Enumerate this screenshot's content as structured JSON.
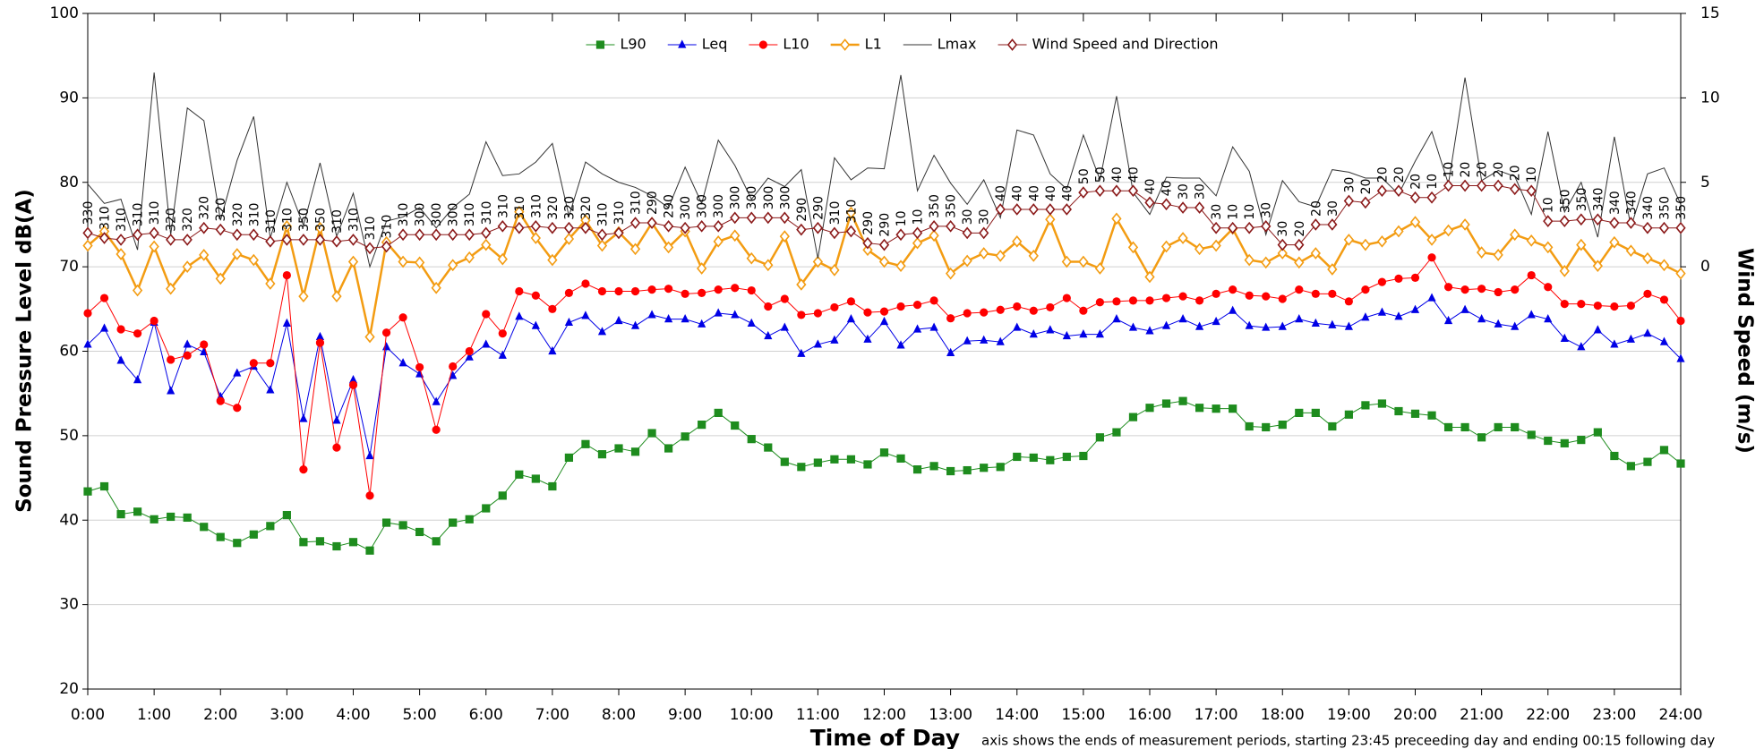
{
  "chart_data": {
    "type": "line",
    "y_label": "Sound Pressure Level dB(A)",
    "y2_label": "Wind Speed (m/s)",
    "x_label": "Time of Day",
    "note": "axis shows the ends of measurement periods, starting 23:45 preceeding day and ending 00:15 following day",
    "x": [
      0,
      0.25,
      0.5,
      0.75,
      1,
      1.25,
      1.5,
      1.75,
      2,
      2.25,
      2.5,
      2.75,
      3,
      3.25,
      3.5,
      3.75,
      4,
      4.25,
      4.5,
      4.75,
      5,
      5.25,
      5.5,
      5.75,
      6,
      6.25,
      6.5,
      6.75,
      7,
      7.25,
      7.5,
      7.75,
      8,
      8.25,
      8.5,
      8.75,
      9,
      9.25,
      9.5,
      9.75,
      10,
      10.25,
      10.5,
      10.75,
      11,
      11.25,
      11.5,
      11.75,
      12,
      12.25,
      12.5,
      12.75,
      13,
      13.25,
      13.5,
      13.75,
      14,
      14.25,
      14.5,
      14.75,
      15,
      15.25,
      15.5,
      15.75,
      16,
      16.25,
      16.5,
      16.75,
      17,
      17.25,
      17.5,
      17.75,
      18,
      18.25,
      18.5,
      18.75,
      19,
      19.25,
      19.5,
      19.75,
      20,
      20.25,
      20.5,
      20.75,
      21,
      21.25,
      21.5,
      21.75,
      22,
      22.25,
      22.5,
      22.75,
      23,
      23.25,
      23.5,
      23.75,
      24
    ],
    "xlim": [
      0,
      24
    ],
    "xticks": [
      {
        "value": 0,
        "label": "0:00"
      },
      {
        "value": 1,
        "label": "1:00"
      },
      {
        "value": 2,
        "label": "2:00"
      },
      {
        "value": 3,
        "label": "3:00"
      },
      {
        "value": 4,
        "label": "4:00"
      },
      {
        "value": 5,
        "label": "5:00"
      },
      {
        "value": 6,
        "label": "6:00"
      },
      {
        "value": 7,
        "label": "7:00"
      },
      {
        "value": 8,
        "label": "8:00"
      },
      {
        "value": 9,
        "label": "9:00"
      },
      {
        "value": 10,
        "label": "10:00"
      },
      {
        "value": 11,
        "label": "11:00"
      },
      {
        "value": 12,
        "label": "12:00"
      },
      {
        "value": 13,
        "label": "13:00"
      },
      {
        "value": 14,
        "label": "14:00"
      },
      {
        "value": 15,
        "label": "15:00"
      },
      {
        "value": 16,
        "label": "16:00"
      },
      {
        "value": 17,
        "label": "17:00"
      },
      {
        "value": 18,
        "label": "18:00"
      },
      {
        "value": 19,
        "label": "19:00"
      },
      {
        "value": 20,
        "label": "20:00"
      },
      {
        "value": 21,
        "label": "21:00"
      },
      {
        "value": 22,
        "label": "22:00"
      },
      {
        "value": 23,
        "label": "23:00"
      },
      {
        "value": 24,
        "label": "24:00"
      }
    ],
    "ylim": [
      20,
      100
    ],
    "yticks": [
      20,
      30,
      40,
      50,
      60,
      70,
      80,
      90,
      100
    ],
    "y2lim": [
      -25,
      15
    ],
    "y2ticks": [
      0,
      5,
      10,
      15
    ],
    "grid": true,
    "legend": "top",
    "series": [
      {
        "name": "L90",
        "color": "#1e8c1e",
        "marker": "square",
        "line_width": 1,
        "values": [
          43.4,
          44,
          40.7,
          41,
          40.1,
          40.4,
          40.3,
          39.2,
          38,
          37.3,
          38.3,
          39.3,
          40.6,
          37.4,
          37.5,
          36.9,
          37.4,
          36.4,
          39.7,
          39.4,
          38.6,
          37.5,
          39.7,
          40.1,
          41.4,
          42.9,
          45.4,
          44.9,
          44,
          47.4,
          49,
          47.8,
          48.5,
          48.1,
          50.3,
          48.5,
          49.9,
          51.3,
          52.7,
          51.2,
          49.6,
          48.6,
          46.9,
          46.3,
          46.8,
          47.2,
          47.2,
          46.6,
          48,
          47.3,
          46,
          46.4,
          45.8,
          45.9,
          46.2,
          46.3,
          47.5,
          47.4,
          47.1,
          47.5,
          47.6,
          49.8,
          50.4,
          52.2,
          53.3,
          53.8,
          54.1,
          53.3,
          53.2,
          53.2,
          51.1,
          51,
          51.3,
          52.7,
          52.7,
          51.1,
          52.5,
          53.6,
          53.8,
          52.9,
          52.6,
          52.4,
          51,
          51,
          49.8,
          51,
          51,
          50.1,
          49.4,
          49.1,
          49.5,
          50.4,
          47.6,
          46.4,
          46.9,
          48.3,
          46.7
        ]
      },
      {
        "name": "Leq",
        "color": "#0000e6",
        "marker": "triangle",
        "line_width": 1,
        "values": [
          60.8,
          62.7,
          58.9,
          56.6,
          63.4,
          55.3,
          60.8,
          59.9,
          54.6,
          57.4,
          58.2,
          55.4,
          63.3,
          52,
          61.7,
          51.8,
          56.6,
          47.6,
          60.5,
          58.6,
          57.3,
          54,
          57.1,
          59.3,
          60.8,
          59.5,
          64.1,
          63,
          60,
          63.4,
          64.2,
          62.3,
          63.6,
          63,
          64.3,
          63.8,
          63.8,
          63.2,
          64.5,
          64.3,
          63.3,
          61.8,
          62.8,
          59.7,
          60.8,
          61.3,
          63.8,
          61.4,
          63.5,
          60.7,
          62.6,
          62.8,
          59.8,
          61.2,
          61.3,
          61.1,
          62.8,
          62,
          62.5,
          61.8,
          62,
          62,
          63.8,
          62.8,
          62.4,
          63,
          63.8,
          62.9,
          63.5,
          64.8,
          63,
          62.8,
          62.9,
          63.8,
          63.3,
          63.1,
          62.9,
          64,
          64.6,
          64.1,
          64.9,
          66.3,
          63.6,
          64.9,
          63.8,
          63.2,
          62.9,
          64.3,
          63.8,
          61.5,
          60.5,
          62.5,
          60.8,
          61.4,
          62.1,
          61.1,
          59.1
        ]
      },
      {
        "name": "L10",
        "color": "#ff0000",
        "marker": "circle",
        "line_width": 1,
        "values": [
          64.5,
          66.3,
          62.6,
          62.1,
          63.6,
          59,
          59.5,
          60.8,
          54.1,
          53.3,
          58.6,
          58.6,
          69,
          46,
          61,
          48.6,
          56,
          42.9,
          62.2,
          64,
          58.1,
          50.7,
          58.2,
          60,
          64.4,
          62.1,
          67.1,
          66.6,
          65,
          66.9,
          68,
          67.1,
          67.1,
          67.1,
          67.3,
          67.4,
          66.8,
          66.9,
          67.3,
          67.5,
          67.2,
          65.3,
          66.2,
          64.3,
          64.5,
          65.2,
          65.9,
          64.6,
          64.7,
          65.3,
          65.5,
          66,
          63.9,
          64.5,
          64.6,
          64.9,
          65.3,
          64.8,
          65.2,
          66.3,
          64.8,
          65.8,
          65.9,
          66,
          66,
          66.3,
          66.5,
          66,
          66.8,
          67.3,
          66.6,
          66.5,
          66.2,
          67.3,
          66.8,
          66.8,
          65.9,
          67.3,
          68.2,
          68.6,
          68.7,
          71.1,
          67.6,
          67.3,
          67.4,
          67,
          67.3,
          69,
          67.6,
          65.6,
          65.6,
          65.4,
          65.3,
          65.4,
          66.8,
          66.1,
          63.6
        ]
      },
      {
        "name": "L1",
        "color": "#f39c12",
        "marker": "diamond-open",
        "line_width": 2.5,
        "values": [
          72.5,
          74.2,
          71.5,
          67.2,
          72.4,
          67.4,
          70,
          71.4,
          68.6,
          71.5,
          70.8,
          68,
          74.8,
          66.5,
          74.6,
          66.5,
          70.6,
          61.7,
          72.9,
          70.6,
          70.5,
          67.5,
          70.2,
          71.1,
          72.6,
          70.9,
          76.5,
          73.4,
          70.8,
          73.3,
          75.5,
          72.5,
          74.1,
          72.1,
          75.2,
          72.3,
          74.2,
          69.8,
          73,
          73.7,
          71,
          70.2,
          73.6,
          67.9,
          70.6,
          69.6,
          76.4,
          72,
          70.6,
          70.1,
          72.8,
          73.7,
          69.2,
          70.7,
          71.6,
          71.3,
          73,
          71.3,
          75.6,
          70.6,
          70.6,
          69.8,
          75.7,
          72.3,
          68.8,
          72.4,
          73.4,
          72.1,
          72.5,
          74.5,
          70.8,
          70.5,
          71.6,
          70.5,
          71.6,
          69.7,
          73.2,
          72.6,
          73,
          74.2,
          75.3,
          73.2,
          74.3,
          75,
          71.7,
          71.4,
          73.8,
          73.1,
          72.3,
          69.5,
          72.6,
          70.1,
          72.9,
          71.9,
          71,
          70.2,
          69.2
        ]
      },
      {
        "name": "Lmax",
        "color": "#333333",
        "marker": "none",
        "line_width": 1,
        "values": [
          79.8,
          77.5,
          78,
          72,
          93,
          73.8,
          88.8,
          87.3,
          75.5,
          82.6,
          87.8,
          73.4,
          80,
          74.9,
          82.3,
          73.6,
          78.7,
          70,
          75.4,
          75.9,
          77,
          74.6,
          77,
          78.6,
          84.8,
          80.8,
          81,
          82.4,
          84.6,
          76,
          82.4,
          81,
          80,
          79.4,
          78.4,
          77,
          81.8,
          77.5,
          85,
          82,
          78,
          80.5,
          79.5,
          81.5,
          71,
          82.9,
          80.3,
          81.7,
          81.6,
          92.7,
          79,
          83.2,
          79.9,
          77.4,
          80.3,
          75.8,
          86.2,
          85.6,
          81,
          79.2,
          85.6,
          80.3,
          90.2,
          78.8,
          76.2,
          80.6,
          80.5,
          80.5,
          78.4,
          84.2,
          81.3,
          73.8,
          80.2,
          77.7,
          77.1,
          81.5,
          81.2,
          80.5,
          80.5,
          78.6,
          82.5,
          86,
          79.8,
          92.4,
          80.2,
          81.4,
          80.7,
          76.2,
          86,
          76.5,
          80,
          73.5,
          85.4,
          74.7,
          81,
          81.7,
          77.4
        ]
      },
      {
        "name": "Wind Speed and Direction",
        "color": "#8b1a1a",
        "marker": "diamond-open",
        "line_width": 1,
        "axis": "y2",
        "values": [
          2,
          1.7,
          1.6,
          1.9,
          2,
          1.6,
          1.6,
          2.3,
          2.2,
          1.9,
          1.9,
          1.5,
          1.6,
          1.6,
          1.6,
          1.5,
          1.6,
          1.1,
          1.2,
          1.9,
          1.9,
          1.9,
          1.9,
          1.9,
          2,
          2.4,
          2.3,
          2.4,
          2.3,
          2.3,
          2.3,
          1.9,
          2,
          2.6,
          2.6,
          2.4,
          2.3,
          2.4,
          2.4,
          2.9,
          2.9,
          2.9,
          2.9,
          2.2,
          2.3,
          2,
          2.1,
          1.4,
          1.3,
          1.9,
          2,
          2.4,
          2.4,
          2,
          2,
          3.4,
          3.4,
          3.4,
          3.4,
          3.4,
          4.4,
          4.5,
          4.5,
          4.5,
          3.8,
          3.7,
          3.5,
          3.5,
          2.3,
          2.3,
          2.3,
          2.4,
          1.3,
          1.3,
          2.5,
          2.5,
          3.9,
          3.8,
          4.5,
          4.5,
          4.1,
          4.1,
          4.8,
          4.8,
          4.8,
          4.8,
          4.6,
          4.5,
          2.7,
          2.7,
          2.8,
          2.8,
          2.6,
          2.6,
          2.3,
          2.3,
          2.3
        ],
        "directions": [
          330,
          310,
          310,
          310,
          310,
          320,
          320,
          320,
          320,
          320,
          310,
          310,
          310,
          350,
          350,
          310,
          310,
          310,
          310,
          310,
          300,
          300,
          300,
          310,
          310,
          310,
          310,
          310,
          320,
          320,
          320,
          310,
          310,
          310,
          290,
          290,
          300,
          300,
          300,
          300,
          300,
          300,
          300,
          290,
          290,
          310,
          310,
          290,
          290,
          10,
          10,
          350,
          350,
          30,
          30,
          40,
          40,
          40,
          40,
          40,
          50,
          50,
          40,
          40,
          40,
          40,
          30,
          30,
          30,
          10,
          10,
          30,
          30,
          20,
          20,
          30,
          30,
          20,
          20,
          20,
          20,
          10,
          10,
          20,
          20,
          20,
          20,
          10,
          10,
          350,
          350,
          340,
          340,
          340,
          340,
          350,
          350
        ]
      }
    ]
  }
}
